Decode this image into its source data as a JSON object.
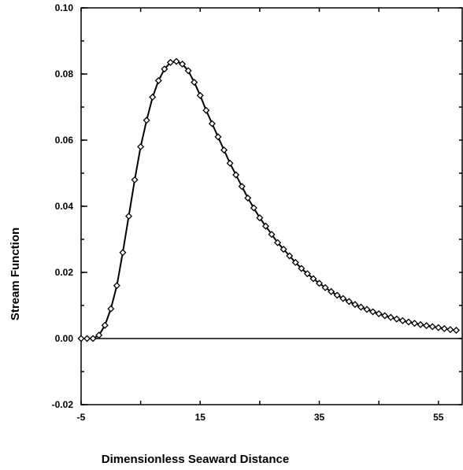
{
  "chart_data": {
    "type": "line",
    "title": "",
    "xlabel": "Dimensionless Seaward Distance",
    "ylabel": "Stream Function",
    "xlim": [
      -5,
      59
    ],
    "ylim": [
      -0.02,
      0.1
    ],
    "xticks": [
      -5,
      15,
      35,
      55
    ],
    "xtick_labels": [
      "-5",
      "15",
      "35",
      "55"
    ],
    "yticks": [
      -0.02,
      0.0,
      0.02,
      0.04,
      0.06,
      0.08,
      0.1
    ],
    "ytick_labels": [
      "-0.02",
      "0.00",
      "0.02",
      "0.04",
      "0.06",
      "0.08",
      "0.10"
    ],
    "grid": false,
    "legend": "none",
    "reference_line_y": 0.0,
    "series": [
      {
        "style": "solid line with open diamond markers",
        "color": "#000000",
        "x": [
          -5,
          -4,
          -3,
          -2,
          -1,
          0,
          1,
          2,
          3,
          4,
          5,
          6,
          7,
          8,
          9,
          10,
          11,
          12,
          13,
          14,
          15,
          16,
          17,
          18,
          19,
          20,
          21,
          22,
          23,
          24,
          25,
          26,
          27,
          28,
          29,
          30,
          31,
          32,
          33,
          34,
          35,
          36,
          37,
          38,
          39,
          40,
          41,
          42,
          43,
          44,
          45,
          46,
          47,
          48,
          49,
          50,
          51,
          52,
          53,
          54,
          55,
          56,
          57,
          58
        ],
        "y": [
          0.0,
          0.0,
          0.0,
          0.001,
          0.004,
          0.009,
          0.016,
          0.026,
          0.037,
          0.048,
          0.058,
          0.066,
          0.073,
          0.078,
          0.0815,
          0.0835,
          0.0838,
          0.083,
          0.081,
          0.0775,
          0.0735,
          0.069,
          0.065,
          0.061,
          0.057,
          0.053,
          0.0495,
          0.046,
          0.0425,
          0.0395,
          0.0365,
          0.034,
          0.0315,
          0.029,
          0.027,
          0.025,
          0.023,
          0.0212,
          0.0196,
          0.0181,
          0.0167,
          0.0154,
          0.0142,
          0.0131,
          0.0121,
          0.0112,
          0.0103,
          0.0095,
          0.0088,
          0.0081,
          0.0075,
          0.0069,
          0.0064,
          0.0059,
          0.0054,
          0.005,
          0.0046,
          0.0042,
          0.0039,
          0.0036,
          0.0033,
          0.003,
          0.0027,
          0.0025
        ]
      }
    ]
  }
}
